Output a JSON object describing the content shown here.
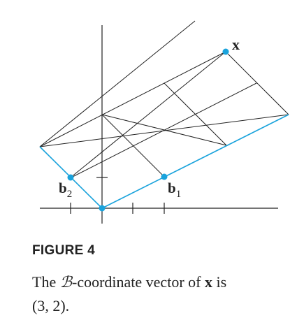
{
  "figure": {
    "labels": {
      "x": "x",
      "b1_main": "b",
      "b1_sub": "1",
      "b2_main": "b",
      "b2_sub": "2"
    },
    "colors": {
      "ink": "#222222",
      "basis": "#1aa3dc",
      "point": "#1aa3dc"
    }
  },
  "caption": {
    "heading": "FIGURE 4",
    "part1": "The ",
    "script_b": "ℬ",
    "part2": "-coordinate vector of ",
    "bold_x": "x",
    "part3": " is",
    "line2": "(3, 2)."
  }
}
